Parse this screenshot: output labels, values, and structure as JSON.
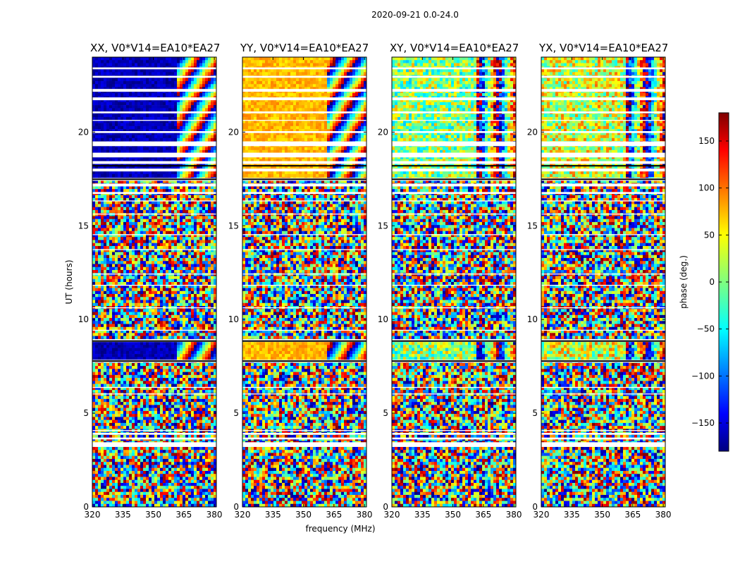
{
  "figure": {
    "suptitle": "2020-09-21 0.0-24.0",
    "xlabel": "frequency (MHz)",
    "ylabel": "UT (hours)",
    "colorbar_label": "phase (deg.)"
  },
  "chart_data": {
    "type": "heatmap",
    "title": "2020-09-21 0.0-24.0",
    "xlabel": "frequency (MHz)",
    "ylabel": "UT (hours)",
    "xlim": [
      320,
      381
    ],
    "ylim": [
      0,
      24
    ],
    "x_ticks": [
      320,
      335,
      350,
      365,
      380
    ],
    "y_ticks": [
      0,
      5,
      10,
      15,
      20
    ],
    "panels": [
      {
        "title": "XX, V0*V14=EA10*EA27"
      },
      {
        "title": "YY, V0*V14=EA10*EA27"
      },
      {
        "title": "XY, V0*V14=EA10*EA27"
      },
      {
        "title": "YX, V0*V14=EA10*EA27"
      }
    ],
    "colorbar": {
      "label": "phase (deg.)",
      "range": [
        -180,
        180
      ],
      "ticks": [
        -150,
        -100,
        -50,
        0,
        50,
        100,
        150
      ],
      "colormap": "jet"
    },
    "noise_base_phase": [
      -180,
      180
    ],
    "coherent_bands_ut": [
      [
        7.8,
        8.8
      ],
      [
        17.5,
        24.0
      ]
    ],
    "coherent_phase_deg": {
      "XX": -160,
      "YY": 70,
      "XY": 5,
      "YX": 30
    },
    "fringing_start_mhz": 362,
    "flagged_ut": [
      [
        3.2,
        3.45
      ],
      [
        3.6,
        3.7
      ],
      [
        3.85,
        3.95
      ],
      [
        4.05,
        4.1
      ],
      [
        6.0,
        6.05
      ],
      [
        6.35,
        6.4
      ],
      [
        7.7,
        7.85
      ],
      [
        8.8,
        8.95
      ],
      [
        9.4,
        9.45
      ],
      [
        10.6,
        10.65
      ],
      [
        11.8,
        11.85
      ],
      [
        12.4,
        12.45
      ],
      [
        13.7,
        13.75
      ],
      [
        14.5,
        14.55
      ],
      [
        15.6,
        15.65
      ],
      [
        16.3,
        16.35
      ],
      [
        16.7,
        16.8
      ],
      [
        17.1,
        17.25
      ],
      [
        17.4,
        17.55
      ],
      [
        17.9,
        18.05
      ],
      [
        18.3,
        18.45
      ],
      [
        18.65,
        18.9
      ],
      [
        19.25,
        19.5
      ],
      [
        19.95,
        20.05
      ],
      [
        20.6,
        20.65
      ],
      [
        21.0,
        21.1
      ],
      [
        21.7,
        21.85
      ],
      [
        22.15,
        22.3
      ],
      [
        22.9,
        23.0
      ],
      [
        23.35,
        23.45
      ]
    ]
  }
}
